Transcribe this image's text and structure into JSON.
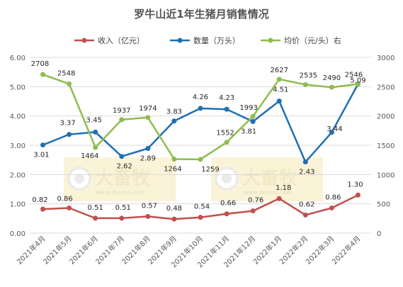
{
  "chart_data": {
    "type": "line",
    "title": "罗牛山近1年生猪月销售情况",
    "categories": [
      "2021年4月",
      "2021年5月",
      "2021年6月",
      "2021年7月",
      "2021年8月",
      "2021年9月",
      "2021年10月",
      "2021年11月",
      "2021年12月",
      "2022年1月",
      "2022年2月",
      "2022年3月",
      "2022年4月"
    ],
    "y_left": {
      "range": [
        0,
        6
      ],
      "ticks": [
        "0.00",
        "1.00",
        "2.00",
        "3.00",
        "4.00",
        "5.00",
        "6.00"
      ]
    },
    "y_right": {
      "range": [
        0,
        3000
      ],
      "ticks": [
        "0",
        "500",
        "1000",
        "1500",
        "2000",
        "2500",
        "3000"
      ]
    },
    "grid": true,
    "legend_position": "top",
    "series": [
      {
        "name": "收入（亿元）",
        "axis": "left",
        "color": "#c0504d",
        "values": [
          0.82,
          0.86,
          0.51,
          0.51,
          0.57,
          0.48,
          0.54,
          0.66,
          0.76,
          1.18,
          0.62,
          0.86,
          1.3
        ],
        "labels": [
          "0.82",
          "0.86",
          "0.51",
          "0.51",
          "0.57",
          "0.48",
          "0.54",
          "0.66",
          "0.76",
          "1.18",
          "0.62",
          "0.86",
          "1.30"
        ]
      },
      {
        "name": "数量（万头）",
        "axis": "left",
        "color": "#1f6fb4",
        "values": [
          3.01,
          3.37,
          3.45,
          2.62,
          2.89,
          3.83,
          4.26,
          4.23,
          3.81,
          4.51,
          2.43,
          3.44,
          5.09
        ],
        "labels": [
          "3.01",
          "3.37",
          "3.45",
          "2.62",
          "2.89",
          "3.83",
          "4.26",
          "4.23",
          "3.81",
          "4.51",
          "2.43",
          "3.44",
          "5.09"
        ]
      },
      {
        "name": "均价（元/头）右",
        "axis": "right",
        "color": "#8fbc4f",
        "values": [
          2708,
          2548,
          1464,
          1937,
          1974,
          1264,
          1259,
          1552,
          1993,
          2627,
          2535,
          2490,
          2546
        ],
        "labels": [
          "2708",
          "2548",
          "1464",
          "1937",
          "1974",
          "1264",
          "1259",
          "1552",
          "1993",
          "2627",
          "2535",
          "2490",
          "2546"
        ]
      }
    ],
    "watermark": {
      "brand": "大畜牧",
      "url": "www.dxumu.com"
    }
  }
}
